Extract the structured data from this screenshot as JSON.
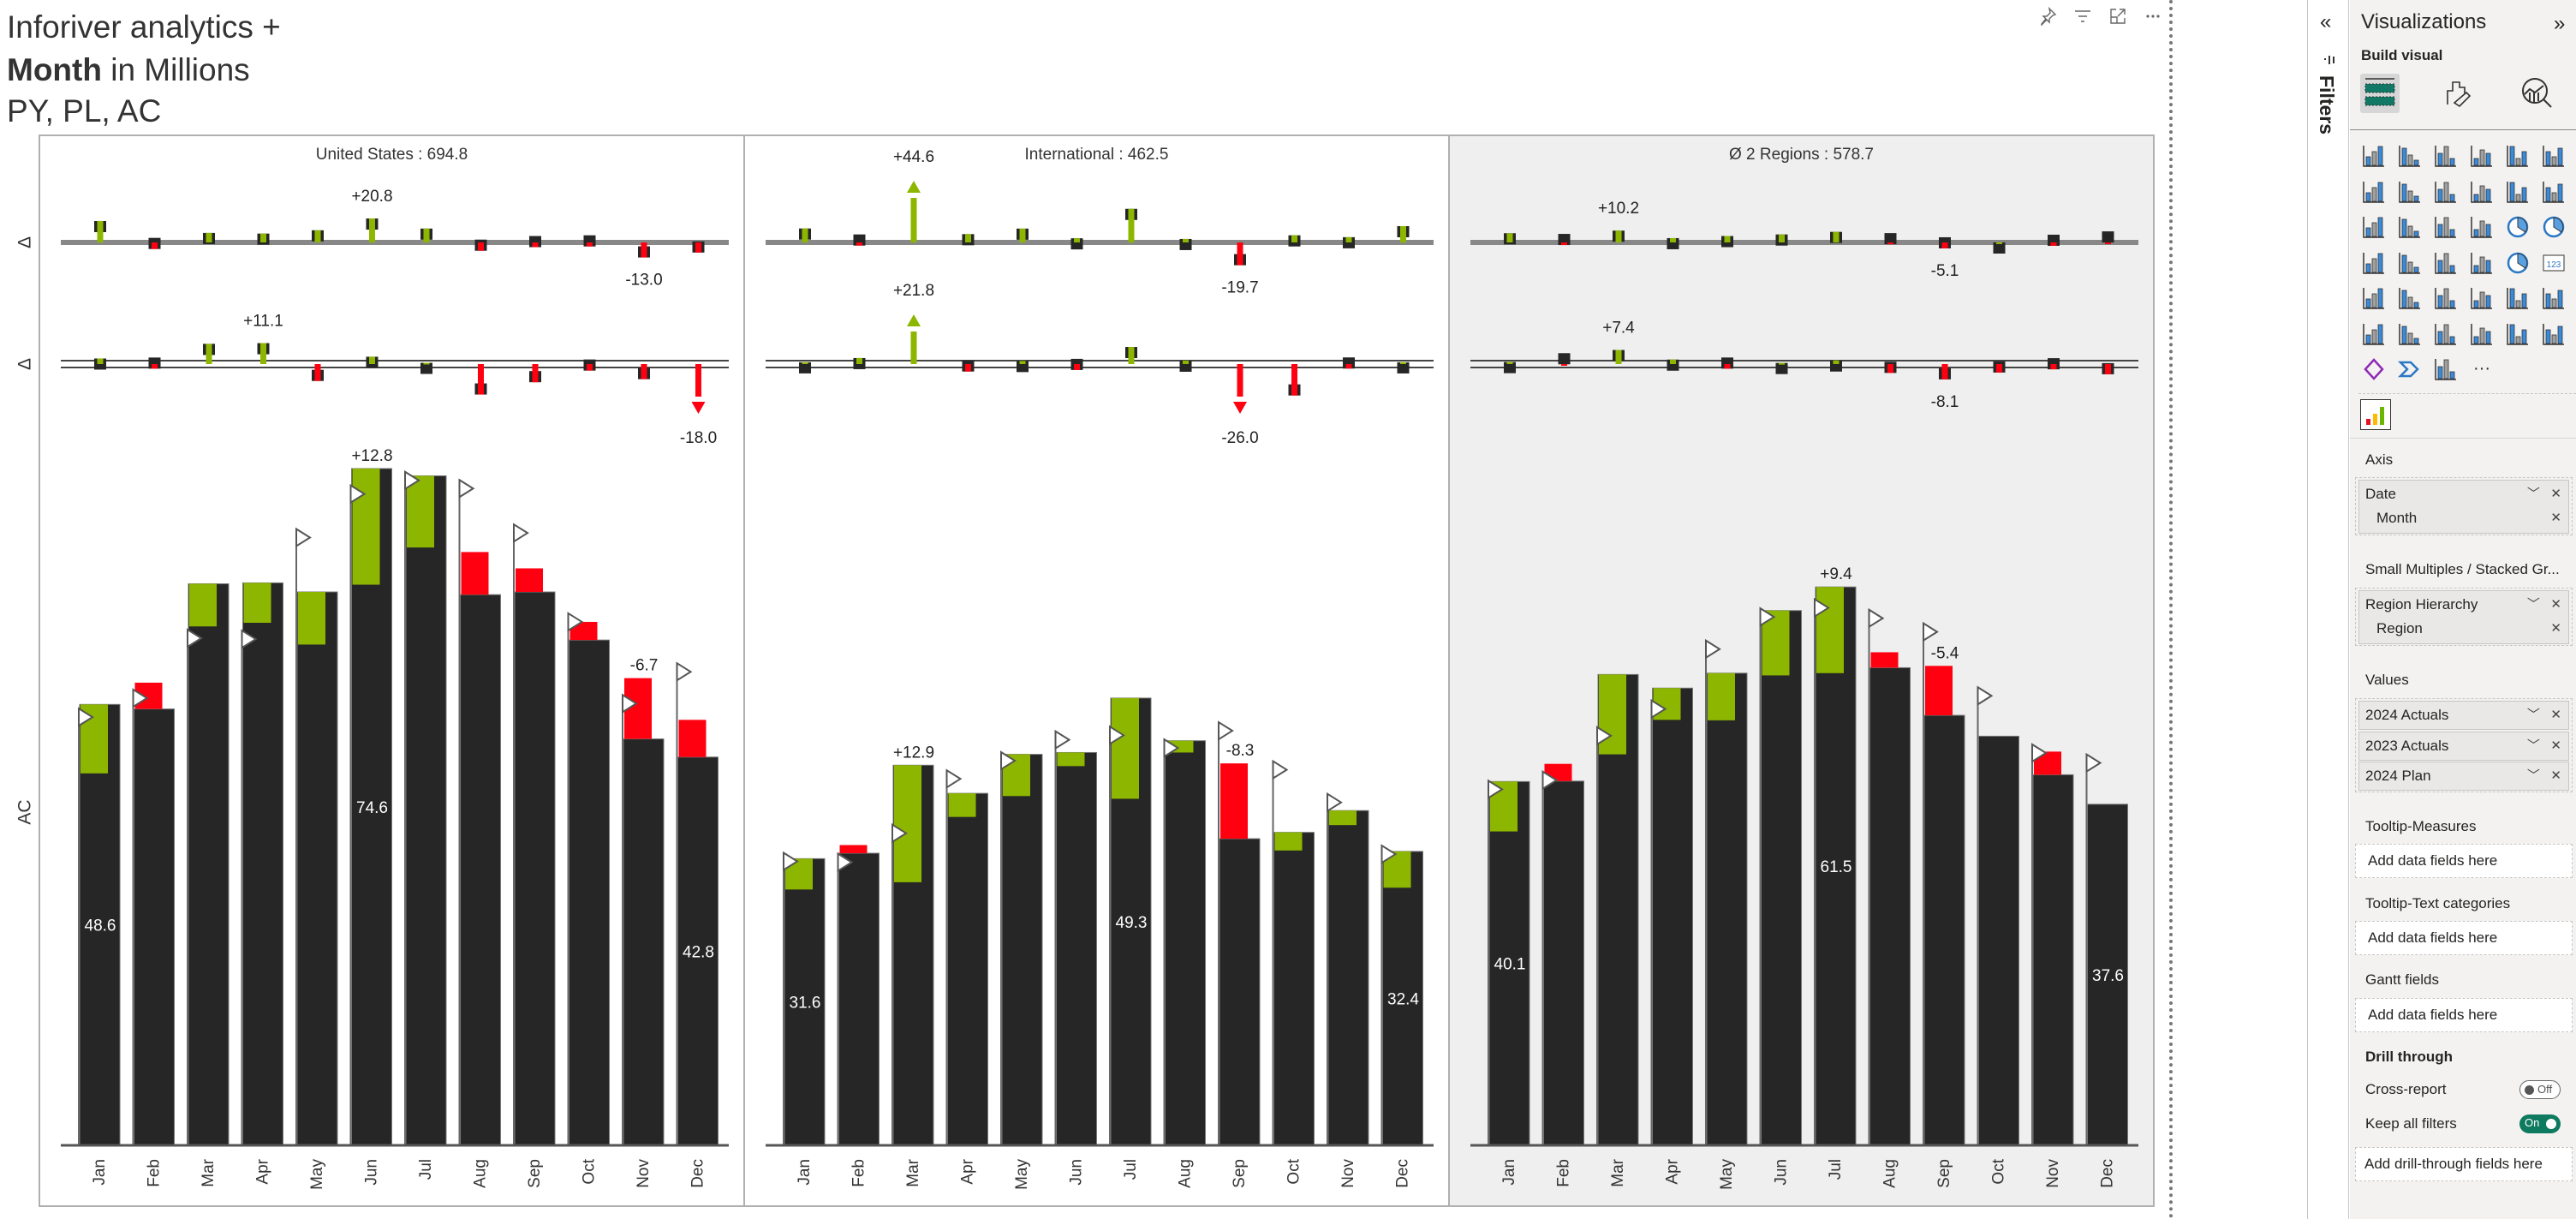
{
  "title": {
    "line1": "Inforiver analytics +",
    "line2_bold": "Month",
    "line2_rest": " in Millions",
    "line3": "PY, PL, AC"
  },
  "visual_header_icons": [
    "pin-icon",
    "filter-icon",
    "focus-mode-icon",
    "more-options-icon"
  ],
  "colors": {
    "ac": "#262626",
    "positive": "#8db600",
    "negative": "#ff0010",
    "axis": "#888888",
    "panel_avg_bg": "#efefef"
  },
  "chart_data": {
    "type": "bar",
    "months": [
      "Jan",
      "Feb",
      "Mar",
      "Apr",
      "May",
      "Jun",
      "Jul",
      "Aug",
      "Sep",
      "Oct",
      "Nov",
      "Dec"
    ],
    "row_labels": {
      "delta_py": "Δ",
      "delta_pl": "Δ",
      "ac": "AC"
    },
    "panels": [
      {
        "title": "United States :  694.8",
        "ac": [
          48.6,
          48.1,
          61.9,
          62.0,
          61.0,
          74.6,
          73.8,
          60.7,
          61.0,
          55.7,
          44.8,
          42.8
        ],
        "py": [
          41.0,
          51.0,
          57.2,
          57.6,
          55.2,
          61.8,
          65.9,
          65.4,
          63.6,
          57.7,
          51.5,
          46.9
        ],
        "pl": [
          47.2,
          49.3,
          55.9,
          55.8,
          67.0,
          71.8,
          73.3,
          72.4,
          67.5,
          57.7,
          48.7,
          52.2
        ],
        "delta_pct_factor": 1,
        "value_labels": [
          {
            "month": 0,
            "text": "48.6"
          },
          {
            "month": 5,
            "text": "74.6"
          },
          {
            "month": 11,
            "text": "42.8"
          }
        ],
        "variance_labels": [
          {
            "month": 5,
            "text": "+12.8"
          },
          {
            "month": 10,
            "text": "-6.7"
          }
        ],
        "dpy_labels": [
          {
            "month": 5,
            "text": "+20.8"
          },
          {
            "month": 10,
            "text": "-13.0"
          }
        ],
        "dpl_labels": [
          {
            "month": 3,
            "text": "+11.1"
          },
          {
            "month": 11,
            "text": "-18.0"
          }
        ]
      },
      {
        "title": "International :  462.5",
        "ac": [
          31.6,
          32.2,
          41.9,
          38.8,
          43.1,
          43.3,
          49.3,
          44.6,
          33.8,
          34.5,
          36.9,
          32.4
        ],
        "py": [
          28.2,
          33.1,
          29.0,
          36.2,
          38.5,
          41.8,
          38.2,
          43.3,
          42.1,
          32.5,
          35.3,
          28.4
        ],
        "pl": [
          31.3,
          31.2,
          34.4,
          40.4,
          42.4,
          44.7,
          45.2,
          43.8,
          45.7,
          41.4,
          37.8,
          32.1
        ],
        "delta_pct_factor": 1,
        "value_labels": [
          {
            "month": 0,
            "text": "31.6"
          },
          {
            "month": 6,
            "text": "49.3"
          },
          {
            "month": 11,
            "text": "32.4"
          }
        ],
        "variance_labels": [
          {
            "month": 2,
            "text": "+12.9"
          },
          {
            "month": 8,
            "text": "-8.3"
          }
        ],
        "dpy_labels": [
          {
            "month": 2,
            "text": "+44.6"
          },
          {
            "month": 8,
            "text": "-19.7"
          }
        ],
        "dpl_labels": [
          {
            "month": 2,
            "text": "+21.8"
          },
          {
            "month": 8,
            "text": "-26.0"
          }
        ]
      },
      {
        "title": "Ø 2 Regions :  578.7",
        "ac": [
          40.1,
          40.15,
          51.9,
          50.4,
          52.05,
          58.95,
          61.55,
          52.65,
          47.4,
          45.1,
          40.85,
          37.6
        ],
        "py": [
          34.6,
          42.05,
          43.1,
          46.9,
          46.85,
          51.8,
          52.05,
          54.35,
          52.85,
          45.1,
          43.4,
          37.65
        ],
        "pl": [
          39.25,
          40.25,
          45.15,
          48.1,
          54.7,
          58.25,
          59.25,
          58.1,
          56.6,
          49.55,
          43.25,
          42.15
        ],
        "delta_pct_factor": 0.5,
        "value_labels": [
          {
            "month": 0,
            "text": "40.1"
          },
          {
            "month": 6,
            "text": "61.5"
          },
          {
            "month": 11,
            "text": "37.6"
          }
        ],
        "variance_labels": [
          {
            "month": 6,
            "text": "+9.4"
          },
          {
            "month": 8,
            "text": "-5.4"
          }
        ],
        "dpy_labels": [
          {
            "month": 2,
            "text": "+10.2"
          },
          {
            "month": 8,
            "text": "-5.1"
          }
        ],
        "dpl_labels": [
          {
            "month": 2,
            "text": "+7.4"
          },
          {
            "month": 8,
            "text": "-8.1"
          }
        ]
      }
    ]
  },
  "filters_pane": {
    "label": "Filters",
    "collapse": "«"
  },
  "viz_pane": {
    "title": "Visualizations",
    "expand": "»",
    "build_visual": "Build visual",
    "tabs": [
      "build-visual-tab",
      "format-visual-tab",
      "analytics-tab"
    ],
    "visual_icons": [
      "stacked-bar",
      "stacked-column",
      "clustered-bar",
      "clustered-column",
      "100-stacked-bar",
      "100-stacked-column",
      "line-chart",
      "area-chart",
      "stacked-area",
      "100-stacked-area",
      "line-stacked-column",
      "line-clustered-column",
      "ribbon-chart",
      "waterfall-chart",
      "funnel-chart",
      "scatter-chart",
      "pie-chart",
      "donut-chart",
      "treemap",
      "map",
      "filled-map",
      "azure-map",
      "gauge",
      "card",
      "multi-row-card",
      "kpi",
      "slicer",
      "table",
      "matrix",
      "key-influencers",
      "decomposition-tree",
      "qa-visual",
      "smart-narrative",
      "metrics",
      "paginated-report",
      "arcgis-map",
      "power-apps",
      "power-automate",
      "inforiver-visual",
      "more"
    ],
    "more_label": "···",
    "axis": {
      "label": "Axis",
      "fields": [
        {
          "name": "Date",
          "chevron": "﹀",
          "remove": "✕"
        },
        {
          "name": "Month",
          "remove": "✕"
        }
      ]
    },
    "small_multiples": {
      "label": "Small Multiples / Stacked Gr...",
      "fields": [
        {
          "name": "Region Hierarchy",
          "chevron": "﹀",
          "remove": "✕"
        },
        {
          "name": "Region",
          "remove": "✕"
        }
      ]
    },
    "values": {
      "label": "Values",
      "fields": [
        {
          "name": "2024 Actuals",
          "chevron": "﹀",
          "remove": "✕"
        },
        {
          "name": "2023 Actuals",
          "chevron": "﹀",
          "remove": "✕"
        },
        {
          "name": "2024 Plan",
          "chevron": "﹀",
          "remove": "✕"
        }
      ]
    },
    "tooltip_measures": {
      "label": "Tooltip-Measures",
      "placeholder": "Add data fields here"
    },
    "tooltip_text": {
      "label": "Tooltip-Text categories",
      "placeholder": "Add data fields here"
    },
    "gantt": {
      "label": "Gantt fields",
      "placeholder": "Add data fields here"
    },
    "drill": {
      "label": "Drill through",
      "cross_report": "Cross-report",
      "cross_report_state": "Off",
      "keep_filters": "Keep all filters",
      "keep_filters_state": "On",
      "placeholder": "Add drill-through fields here"
    }
  }
}
